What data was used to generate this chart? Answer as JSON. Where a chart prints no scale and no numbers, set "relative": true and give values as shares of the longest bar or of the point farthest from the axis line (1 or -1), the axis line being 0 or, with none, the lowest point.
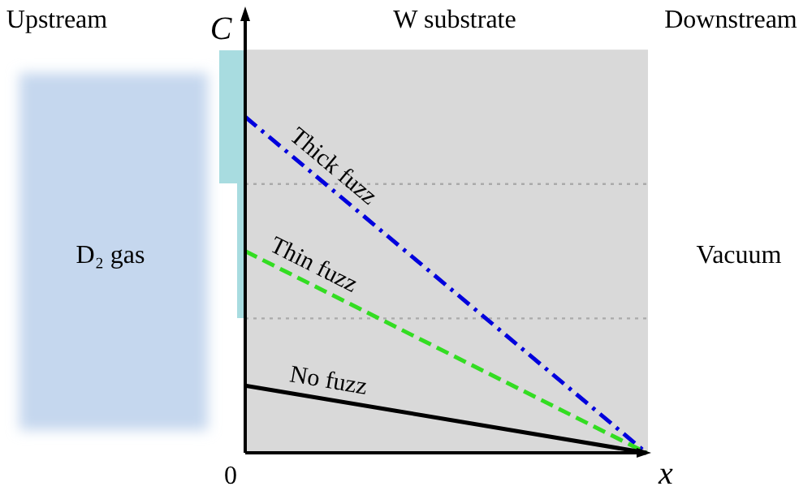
{
  "chart_data": {
    "type": "line",
    "relative": true,
    "xlabel": "x",
    "ylabel": "C",
    "categories": [
      null,
      null
    ],
    "series": [
      {
        "name": "Thick fuzz",
        "color": "#0000dd",
        "values": [
          1,
          0
        ],
        "line_style": "dashdot"
      },
      {
        "name": "Thin fuzz",
        "color": "#33dd22",
        "values": [
          0.6,
          0
        ],
        "line_style": "dashed"
      },
      {
        "name": "No fuzz",
        "color": "#000000",
        "values": [
          0.2,
          0
        ],
        "line_style": "solid"
      }
    ],
    "ref_lines": [
      {
        "axis": "y",
        "value": 0.8,
        "color": "#aaaaaa",
        "line_style": "dotted"
      },
      {
        "axis": "y",
        "value": 0.4,
        "color": "#aaaaaa",
        "line_style": "dotted"
      }
    ],
    "bands": [
      {
        "axis": "y",
        "from": 0,
        "to": 1.2,
        "color": "#d9d9d9"
      }
    ],
    "annotations": [
      "Upstream",
      "W substrate",
      "Downstream",
      "D₂ gas",
      "Vacuum",
      "0"
    ]
  }
}
